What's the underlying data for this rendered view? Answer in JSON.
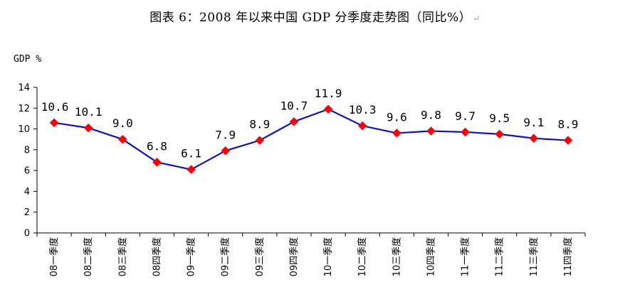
{
  "page": {
    "title": "图表 6：2008 年以来中国 GDP 分季度走势图（同比%）",
    "title_mark": "↵"
  },
  "chart_data": {
    "type": "line",
    "title": "图表 6：2008 年以来中国 GDP 分季度走势图（同比%）",
    "ylabel": "GDP %",
    "xlabel": "",
    "ylim": [
      0,
      14
    ],
    "yticks": [
      0,
      2,
      4,
      6,
      8,
      10,
      12,
      14
    ],
    "grid": false,
    "legend": "none",
    "categories": [
      "08一季度",
      "08二季度",
      "08三季度",
      "08四季度",
      "09一季度",
      "09二季度",
      "09三季度",
      "09四季度",
      "10一季度",
      "10二季度",
      "10三季度",
      "10四季度",
      "11一季度",
      "11二季度",
      "11三季度",
      "11四季度"
    ],
    "series": [
      {
        "values": [
          10.6,
          10.1,
          9.0,
          6.8,
          6.1,
          7.9,
          8.9,
          10.7,
          11.9,
          10.3,
          9.6,
          9.8,
          9.7,
          9.5,
          9.1,
          8.9
        ],
        "labels": [
          "10.6",
          "10.1",
          "9.0",
          "6.8",
          "6.1",
          "7.9",
          "8.9",
          "10.7",
          "11.9",
          "10.3",
          "9.6",
          "9.8",
          "9.7",
          "9.5",
          "9.1",
          "8.9"
        ],
        "line_color": "#1010C8",
        "marker_color": "#FF0000",
        "marker": "diamond"
      }
    ]
  }
}
